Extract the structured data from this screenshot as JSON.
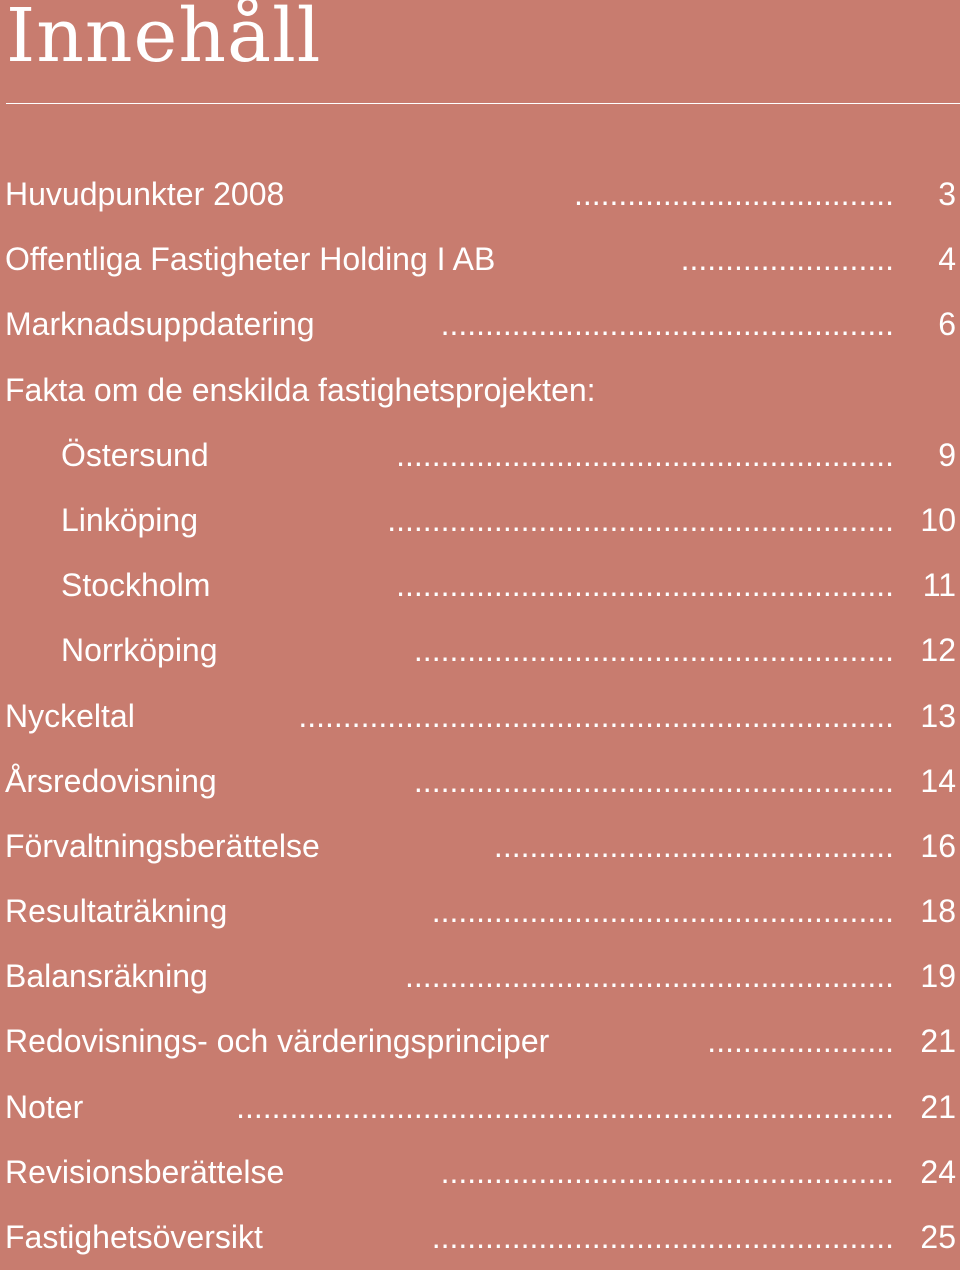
{
  "title": "Innehåll",
  "entries": [
    {
      "label": "Huvudpunkter 2008",
      "page": "3",
      "indent": false,
      "dots": "...................................."
    },
    {
      "label": "Offentliga Fastigheter Holding I AB",
      "page": "4",
      "indent": false,
      "dots": "........................"
    },
    {
      "label": "Marknadsuppdatering",
      "page": "6",
      "indent": false,
      "dots": "..................................................."
    },
    {
      "label": "Fakta om de enskilda fastighetsprojekten:",
      "page": "",
      "indent": false,
      "dots": ""
    },
    {
      "label": "Östersund",
      "page": "9",
      "indent": true,
      "dots": "........................................................"
    },
    {
      "label": "Linköping",
      "page": "10",
      "indent": true,
      "dots": "........................................................."
    },
    {
      "label": "Stockholm",
      "page": "11",
      "indent": true,
      "dots": "........................................................"
    },
    {
      "label": "Norrköping",
      "page": "12",
      "indent": true,
      "dots": "......................................................"
    },
    {
      "label": "Nyckeltal",
      "page": "13",
      "indent": false,
      "dots": "..................................................................."
    },
    {
      "label": "Årsredovisning",
      "page": "14",
      "indent": false,
      "dots": "......................................................"
    },
    {
      "label": "Förvaltningsberättelse",
      "page": "16",
      "indent": false,
      "dots": "............................................."
    },
    {
      "label": "Resultaträkning",
      "page": "18",
      "indent": false,
      "dots": "...................................................."
    },
    {
      "label": "Balansräkning",
      "page": "19",
      "indent": false,
      "dots": "......................................................."
    },
    {
      "label": "Redovisnings- och värderingsprinciper",
      "page": "21",
      "indent": false,
      "dots": "....................."
    },
    {
      "label": "Noter",
      "page": "21",
      "indent": false,
      "dots": ".........................................................................."
    },
    {
      "label": "Revisionsberättelse",
      "page": "24",
      "indent": false,
      "dots": "..................................................."
    },
    {
      "label": "Fastighetsöversikt",
      "page": "25",
      "indent": false,
      "dots": "...................................................."
    }
  ]
}
